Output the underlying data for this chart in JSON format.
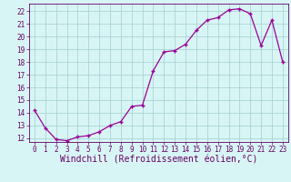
{
  "hours": [
    0,
    1,
    2,
    3,
    4,
    5,
    6,
    7,
    8,
    9,
    10,
    11,
    12,
    13,
    14,
    15,
    16,
    17,
    18,
    19,
    20,
    21,
    22,
    23
  ],
  "values": [
    14.2,
    12.8,
    11.9,
    11.8,
    12.1,
    12.2,
    12.5,
    13.0,
    13.3,
    14.5,
    14.6,
    17.3,
    18.8,
    18.9,
    19.4,
    20.5,
    21.3,
    21.5,
    22.1,
    22.2,
    21.8,
    19.3,
    21.3,
    18.0
  ],
  "line_color": "#990099",
  "marker": "+",
  "bg_color": "#d8f5f5",
  "grid_color": "#aad4d4",
  "xlabel": "Windchill (Refroidissement éolien,°C)",
  "ylim": [
    11.7,
    22.6
  ],
  "xlim": [
    -0.5,
    23.5
  ],
  "yticks": [
    12,
    13,
    14,
    15,
    16,
    17,
    18,
    19,
    20,
    21,
    22
  ],
  "xticks": [
    0,
    1,
    2,
    3,
    4,
    5,
    6,
    7,
    8,
    9,
    10,
    11,
    12,
    13,
    14,
    15,
    16,
    17,
    18,
    19,
    20,
    21,
    22,
    23
  ],
  "tick_label_fontsize": 5.5,
  "xlabel_fontsize": 7.0,
  "text_color": "#660066"
}
